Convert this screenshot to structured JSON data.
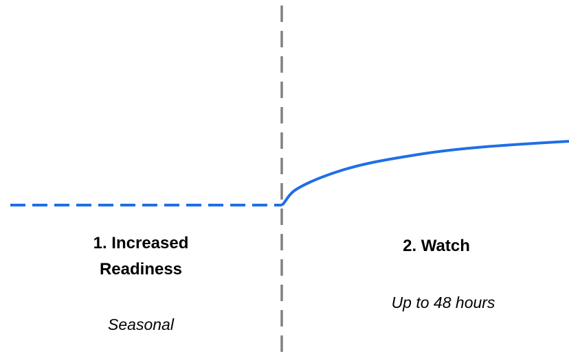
{
  "colors": {
    "curve": "#1f6fe5",
    "divider": "#808080",
    "text": "#000000"
  },
  "phases": [
    {
      "title_line1": "1. Increased",
      "title_line2": "Readiness",
      "subtitle": "Seasonal",
      "line_style": "dashed"
    },
    {
      "title_line1": "2. Watch",
      "subtitle": "Up to 48 hours",
      "line_style": "solid"
    }
  ]
}
